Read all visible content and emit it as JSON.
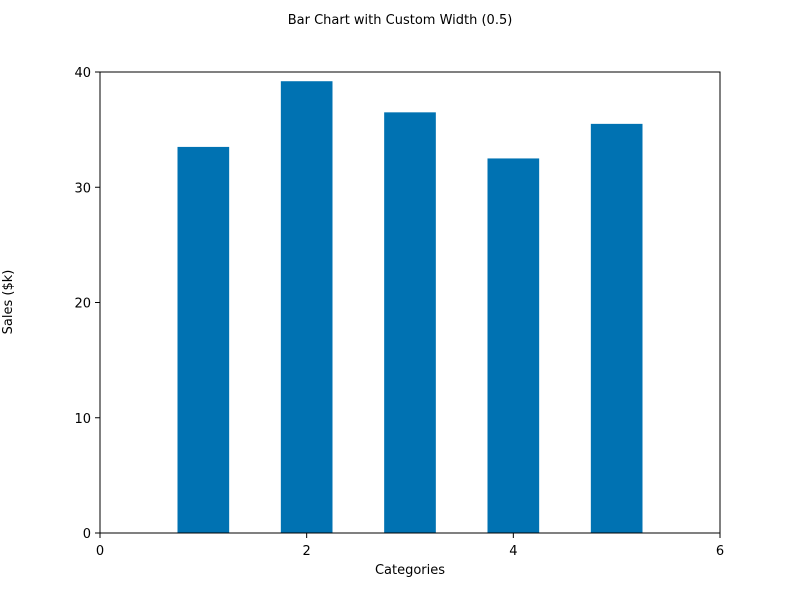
{
  "chart_data": {
    "type": "bar",
    "title": "Bar Chart with Custom Width (0.5)",
    "xlabel": "Categories",
    "ylabel": "Sales ($k)",
    "bar_width": 0.5,
    "x": [
      1,
      2,
      3,
      4,
      5
    ],
    "values": [
      33.5,
      39.2,
      36.5,
      32.5,
      35.5
    ],
    "xlim": [
      0,
      6
    ],
    "ylim": [
      0,
      40
    ],
    "xticks": [
      0,
      2,
      4,
      6
    ],
    "yticks": [
      0,
      10,
      20,
      30,
      40
    ],
    "color": "#0072B2",
    "grid": false,
    "legend": "none"
  }
}
